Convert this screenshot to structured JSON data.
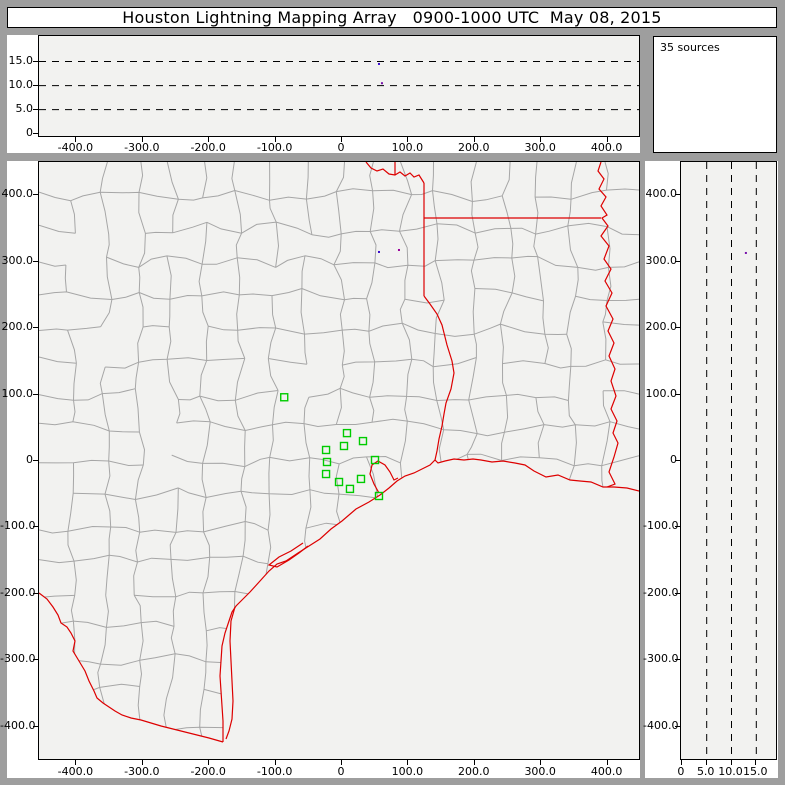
{
  "window": {
    "title": "Houston Lightning Mapping Array   0900-1000 UTC  May 08, 2015"
  },
  "sources_panel": {
    "label": "35 sources",
    "count": 35
  },
  "colors": {
    "frame": "#9e9e9e",
    "panel_bg": "#f2f2f0",
    "white": "#ffffff",
    "black": "#000000",
    "county_line": "#a6a6a6",
    "state_border": "#dd0000",
    "station": "#00cc00",
    "source_dot_blue": "#3a0ccc",
    "source_dot_purple": "#990099",
    "source_dot_violet": "#7711aa"
  },
  "axes": {
    "east_west": {
      "tick_values": [
        -400,
        -300,
        -200,
        -100,
        0,
        100,
        200,
        300,
        400
      ],
      "tick_labels": [
        "-400.0",
        "-300.0",
        "-200.0",
        "-100.0",
        "0",
        "100.0",
        "200.0",
        "300.0",
        "400.0"
      ],
      "range_km": [
        -456,
        448
      ]
    },
    "north_south": {
      "tick_values": [
        400,
        300,
        200,
        100,
        0,
        -100,
        -200,
        -300,
        -400
      ],
      "tick_labels": [
        "400.0",
        "300.0",
        "200.0",
        "100.0",
        "0",
        "-100.0",
        "-200.0",
        "-300.0",
        "-400.0"
      ],
      "range_km": [
        -450,
        450
      ]
    },
    "altitude": {
      "tick_values": [
        0,
        5,
        10,
        15
      ],
      "tick_labels": [
        "0",
        "5.0",
        "10.0",
        "15.0"
      ],
      "range_km": [
        0,
        20
      ],
      "dashed_gridlines_km": [
        5,
        10,
        15
      ]
    }
  },
  "chart_data": [
    {
      "id": "altitude-vs-east-west",
      "type": "scatter",
      "title": "",
      "x_axis": "east_west",
      "y_axis": "altitude",
      "grid": "dashed horizontal at 5,10,15 km",
      "points": [
        {
          "east_km": 55.7,
          "alt_km": 14.5,
          "color": "#3a0ccc"
        },
        {
          "east_km": 60.2,
          "alt_km": 10.5,
          "color": "#7711aa"
        }
      ]
    },
    {
      "id": "plan-view-map",
      "type": "scatter",
      "title": "",
      "x_axis": "east_west",
      "y_axis": "north_south",
      "stations_km": [
        [
          -87.0,
          96.0
        ],
        [
          7.5,
          42.0
        ],
        [
          31.6,
          30.0
        ],
        [
          3.0,
          22.6
        ],
        [
          -24.0,
          16.6
        ],
        [
          -22.6,
          -1.5
        ],
        [
          -24.0,
          -19.6
        ],
        [
          49.7,
          1.5
        ],
        [
          28.6,
          -27.0
        ],
        [
          -4.5,
          -31.6
        ],
        [
          12.0,
          -42.0
        ],
        [
          55.7,
          -52.7
        ]
      ],
      "source_points_km": [
        {
          "east_km": 55.7,
          "north_km": 314.8,
          "color": "#3a0ccc"
        },
        {
          "east_km": 85.8,
          "north_km": 317.8,
          "color": "#990099"
        }
      ]
    },
    {
      "id": "altitude-vs-north-south",
      "type": "scatter",
      "title": "",
      "x_axis": "altitude",
      "y_axis": "north_south",
      "grid": "dashed vertical at 5,10,15 km",
      "points": [
        {
          "alt_km": 12.9,
          "north_km": 313.3,
          "color": "#7711aa"
        }
      ]
    }
  ]
}
